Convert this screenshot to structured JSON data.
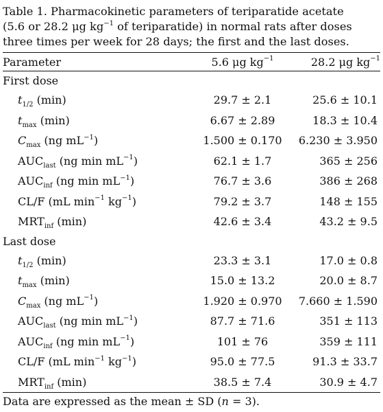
{
  "caption": {
    "line1": "Table 1.  Pharmacokinetic parameters of teriparatide acetate",
    "line2_pre": "(5.6 or 28.2 μg kg",
    "line2_sup": "−1",
    "line2_post": " of teriparatide) in normal rats after doses",
    "line3": "three times per week for 28 days; the first and the last doses."
  },
  "header": {
    "parameter": "Parameter",
    "low_dose_pre": "5.6 μg kg",
    "low_dose_sup": "−1",
    "high_dose_pre": "28.2 μg kg",
    "high_dose_sup": "−1"
  },
  "sections": [
    {
      "title": "First dose",
      "rows": [
        {
          "sym": "t",
          "sub": "1/2",
          "unit": " (min)",
          "low": "29.7 ± 2.1",
          "high": "25.6 ± 10.1"
        },
        {
          "sym": "t",
          "sub": "max",
          "unit": " (min)",
          "low": "6.67 ± 2.89",
          "high": "18.3 ± 10.4"
        },
        {
          "sym": "C",
          "sub": "max",
          "unit": " (ng mL",
          "unit_sup": "−1",
          "unit_post": ")",
          "low": "1.500 ± 0.170",
          "high": "6.230 ± 3.950"
        },
        {
          "sym": "AUC",
          "sub": "last",
          "unit": " (ng min mL",
          "unit_sup": "−1",
          "unit_post": ")",
          "low": "62.1 ± 1.7",
          "high": "365 ± 256"
        },
        {
          "sym": "AUC",
          "sub": "inf",
          "unit": " (ng min mL",
          "unit_sup": "−1",
          "unit_post": ")",
          "low": "76.7 ± 3.6",
          "high": "386 ± 268"
        },
        {
          "sym": "CL/F",
          "unit": " (mL min",
          "unit_sup": "−1",
          "unit_post": " kg",
          "unit_sup2": "−1",
          "unit_post2": ")",
          "low": "79.2 ± 3.7",
          "high": "148 ± 155"
        },
        {
          "sym": "MRT",
          "sub": "inf",
          "unit": " (min)",
          "low": "42.6 ± 3.4",
          "high": "43.2 ± 9.5"
        }
      ]
    },
    {
      "title": "Last dose",
      "rows": [
        {
          "sym": "t",
          "sub": "1/2",
          "unit": " (min)",
          "low": "23.3 ± 3.1",
          "high": "17.0 ± 0.8"
        },
        {
          "sym": "t",
          "sub": "max",
          "unit": " (min)",
          "low": "15.0 ± 13.2",
          "high": "20.0 ± 8.7"
        },
        {
          "sym": "C",
          "sub": "max",
          "unit": " (ng mL",
          "unit_sup": "−1",
          "unit_post": ")",
          "low": "1.920 ± 0.970",
          "high": "7.660 ± 1.590"
        },
        {
          "sym": "AUC",
          "sub": "last",
          "unit": " (ng min mL",
          "unit_sup": "−1",
          "unit_post": ")",
          "low": "87.7 ± 71.6",
          "high": "351 ± 113"
        },
        {
          "sym": "AUC",
          "sub": "inf",
          "unit": " (ng min mL",
          "unit_sup": "−1",
          "unit_post": ")",
          "low": "101 ± 76",
          "high": "359 ± 111"
        },
        {
          "sym": "CL/F",
          "unit": " (mL min",
          "unit_sup": "−1",
          "unit_post": " kg",
          "unit_sup2": "−1",
          "unit_post2": ")",
          "low": "95.0 ± 77.5",
          "high": "91.3 ± 33.7"
        },
        {
          "sym": "MRT",
          "sub": "inf",
          "unit": " (min)",
          "low": "38.5 ± 7.4",
          "high": "30.9 ± 4.7"
        }
      ]
    }
  ],
  "footnote": {
    "pre": "Data are expressed as the mean ± SD (",
    "var": "n",
    "post": " = 3)."
  }
}
